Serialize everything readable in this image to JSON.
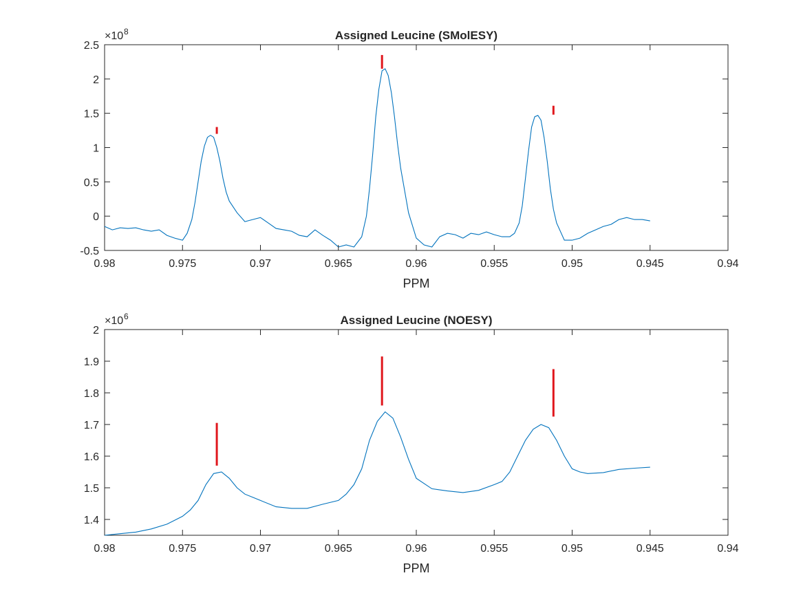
{
  "chart_data": [
    {
      "type": "line",
      "title": "Assigned Leucine (SMolESY)",
      "xlabel": "PPM",
      "ylabel": "",
      "xlim": [
        0.98,
        0.94
      ],
      "x_reversed": true,
      "ylim": [
        -0.5,
        2.5
      ],
      "y_exponent_label": "×10",
      "y_exponent": "8",
      "xticks": [
        0.98,
        0.975,
        0.97,
        0.965,
        0.96,
        0.955,
        0.95,
        0.945,
        0.94
      ],
      "xtick_labels": [
        "0.98",
        "0.975",
        "0.97",
        "0.965",
        "0.96",
        "0.955",
        "0.95",
        "0.945",
        "0.94"
      ],
      "yticks": [
        -0.5,
        0,
        0.5,
        1,
        1.5,
        2,
        2.5
      ],
      "ytick_labels": [
        "-0.5",
        "0",
        "0.5",
        "1",
        "1.5",
        "2",
        "2.5"
      ],
      "grid": false,
      "line_color": "#0072BD",
      "marker_color": "#e0161c",
      "series": [
        {
          "x": [
            0.98,
            0.9795,
            0.979,
            0.9785,
            0.978,
            0.9775,
            0.977,
            0.9765,
            0.976,
            0.9755,
            0.975,
            0.9747,
            0.9744,
            0.9742,
            0.974,
            0.9738,
            0.9736,
            0.9734,
            0.9732,
            0.973,
            0.9728,
            0.9726,
            0.9724,
            0.9722,
            0.972,
            0.9715,
            0.971,
            0.9705,
            0.97,
            0.9695,
            0.969,
            0.9685,
            0.968,
            0.9675,
            0.967,
            0.9665,
            0.966,
            0.9655,
            0.965,
            0.9645,
            0.964,
            0.9635,
            0.9632,
            0.963,
            0.9628,
            0.9626,
            0.9624,
            0.9622,
            0.962,
            0.9618,
            0.9616,
            0.9614,
            0.9612,
            0.961,
            0.9605,
            0.96,
            0.9595,
            0.959,
            0.9585,
            0.958,
            0.9575,
            0.957,
            0.9565,
            0.956,
            0.9555,
            0.955,
            0.9545,
            0.954,
            0.9537,
            0.9534,
            0.9532,
            0.953,
            0.9528,
            0.9526,
            0.9524,
            0.9522,
            0.952,
            0.9518,
            0.9516,
            0.9514,
            0.9512,
            0.951,
            0.9505,
            0.95,
            0.9495,
            0.949,
            0.9485,
            0.948,
            0.9475,
            0.947,
            0.9465,
            0.946,
            0.9455,
            0.945
          ],
          "y": [
            -0.15,
            -0.2,
            -0.17,
            -0.18,
            -0.17,
            -0.2,
            -0.22,
            -0.2,
            -0.28,
            -0.32,
            -0.35,
            -0.25,
            -0.05,
            0.2,
            0.5,
            0.8,
            1.02,
            1.15,
            1.18,
            1.15,
            1.0,
            0.8,
            0.55,
            0.35,
            0.22,
            0.05,
            -0.08,
            -0.05,
            -0.02,
            -0.1,
            -0.18,
            -0.2,
            -0.22,
            -0.28,
            -0.3,
            -0.2,
            -0.28,
            -0.35,
            -0.45,
            -0.42,
            -0.45,
            -0.3,
            0.0,
            0.4,
            0.9,
            1.45,
            1.85,
            2.12,
            2.15,
            2.05,
            1.8,
            1.45,
            1.05,
            0.7,
            0.05,
            -0.32,
            -0.42,
            -0.45,
            -0.3,
            -0.25,
            -0.27,
            -0.32,
            -0.25,
            -0.27,
            -0.23,
            -0.27,
            -0.3,
            -0.3,
            -0.25,
            -0.1,
            0.15,
            0.55,
            0.95,
            1.3,
            1.45,
            1.47,
            1.4,
            1.15,
            0.8,
            0.4,
            0.1,
            -0.1,
            -0.35,
            -0.35,
            -0.32,
            -0.25,
            -0.2,
            -0.15,
            -0.12,
            -0.05,
            -0.02,
            -0.05,
            -0.05,
            -0.07
          ]
        }
      ],
      "markers": [
        {
          "x": 0.9728,
          "y_bottom": 1.2,
          "y_top": 1.3
        },
        {
          "x": 0.9622,
          "y_bottom": 2.15,
          "y_top": 2.35
        },
        {
          "x": 0.9512,
          "y_bottom": 1.48,
          "y_top": 1.61
        }
      ]
    },
    {
      "type": "line",
      "title": "Assigned Leucine (NOESY)",
      "xlabel": "PPM",
      "ylabel": "",
      "xlim": [
        0.98,
        0.94
      ],
      "x_reversed": true,
      "ylim": [
        1.35,
        2.0
      ],
      "y_exponent_label": "×10",
      "y_exponent": "6",
      "xticks": [
        0.98,
        0.975,
        0.97,
        0.965,
        0.96,
        0.955,
        0.95,
        0.945,
        0.94
      ],
      "xtick_labels": [
        "0.98",
        "0.975",
        "0.97",
        "0.965",
        "0.96",
        "0.955",
        "0.95",
        "0.945",
        "0.94"
      ],
      "yticks": [
        1.4,
        1.5,
        1.6,
        1.7,
        1.8,
        1.9,
        2.0
      ],
      "ytick_labels": [
        "1.4",
        "1.5",
        "1.6",
        "1.7",
        "1.8",
        "1.9",
        "2"
      ],
      "grid": false,
      "line_color": "#0072BD",
      "marker_color": "#e0161c",
      "series": [
        {
          "x": [
            0.98,
            0.979,
            0.978,
            0.977,
            0.976,
            0.975,
            0.9745,
            0.974,
            0.9735,
            0.973,
            0.9725,
            0.972,
            0.9715,
            0.971,
            0.9705,
            0.97,
            0.969,
            0.968,
            0.967,
            0.966,
            0.965,
            0.9645,
            0.964,
            0.9635,
            0.963,
            0.9625,
            0.962,
            0.9615,
            0.961,
            0.9605,
            0.96,
            0.959,
            0.958,
            0.957,
            0.956,
            0.955,
            0.9545,
            0.954,
            0.9535,
            0.953,
            0.9525,
            0.952,
            0.9515,
            0.951,
            0.9505,
            0.95,
            0.9495,
            0.949,
            0.948,
            0.947,
            0.946,
            0.945
          ],
          "y": [
            1.35,
            1.355,
            1.36,
            1.37,
            1.385,
            1.41,
            1.43,
            1.46,
            1.51,
            1.545,
            1.55,
            1.53,
            1.5,
            1.48,
            1.47,
            1.46,
            1.44,
            1.435,
            1.435,
            1.448,
            1.46,
            1.48,
            1.51,
            1.56,
            1.65,
            1.71,
            1.74,
            1.72,
            1.66,
            1.59,
            1.53,
            1.497,
            1.49,
            1.485,
            1.492,
            1.51,
            1.52,
            1.55,
            1.6,
            1.65,
            1.685,
            1.7,
            1.69,
            1.65,
            1.6,
            1.56,
            1.55,
            1.545,
            1.548,
            1.558,
            1.562,
            1.565
          ]
        }
      ],
      "markers": [
        {
          "x": 0.9728,
          "y_bottom": 1.57,
          "y_top": 1.705
        },
        {
          "x": 0.9622,
          "y_bottom": 1.76,
          "y_top": 1.915
        },
        {
          "x": 0.9512,
          "y_bottom": 1.725,
          "y_top": 1.875
        }
      ]
    }
  ]
}
